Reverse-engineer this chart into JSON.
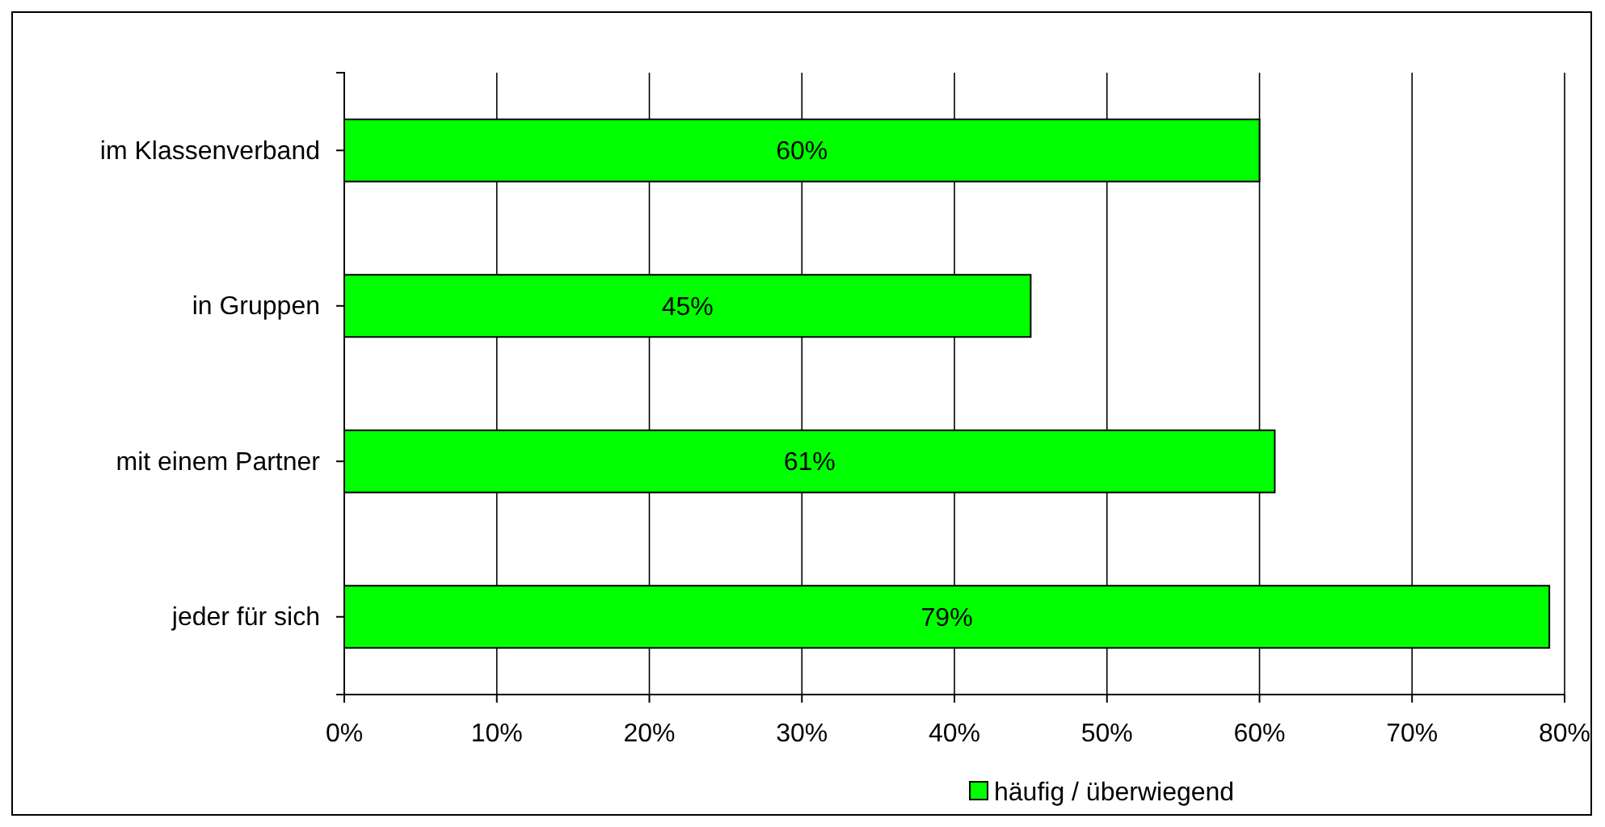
{
  "chart_data": {
    "type": "bar",
    "orientation": "horizontal",
    "categories": [
      "im Klassenverband",
      "in Gruppen",
      "mit einem Partner",
      "jeder für sich"
    ],
    "series": [
      {
        "name": "häufig / überwiegend",
        "color": "#00ff00",
        "values": [
          60,
          45,
          61,
          79
        ],
        "value_labels": [
          "60%",
          "45%",
          "61%",
          "79%"
        ]
      }
    ],
    "xlim": [
      0,
      80
    ],
    "xticks": [
      {
        "value": 0,
        "label": "0%"
      },
      {
        "value": 10,
        "label": "10%"
      },
      {
        "value": 20,
        "label": "20%"
      },
      {
        "value": 30,
        "label": "30%"
      },
      {
        "value": 40,
        "label": "40%"
      },
      {
        "value": 50,
        "label": "50%"
      },
      {
        "value": 60,
        "label": "60%"
      },
      {
        "value": 70,
        "label": "70%"
      },
      {
        "value": 80,
        "label": "80%"
      }
    ],
    "grid": "x",
    "legend": "bottom"
  }
}
